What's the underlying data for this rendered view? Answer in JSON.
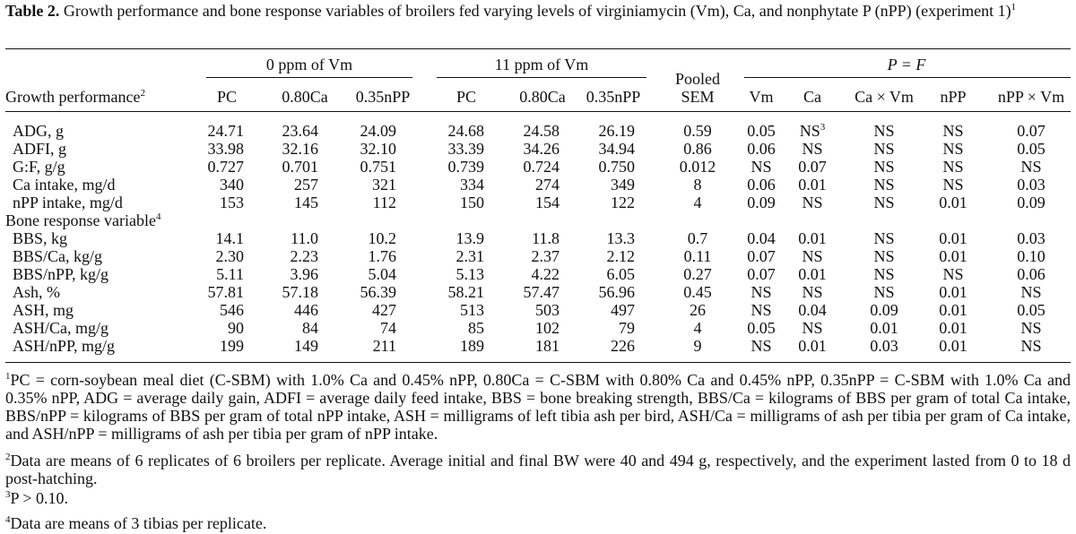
{
  "caption": {
    "label": "Table 2.",
    "text": " Growth performance and bone response variables of broilers fed varying levels of virginiamycin (Vm), Ca, and nonphytate P (nPP) (experiment 1)",
    "sup": "1"
  },
  "header": {
    "group_0ppm": "0 ppm of Vm",
    "group_11ppm": "11 ppm of Vm",
    "pooled_line1": "Pooled",
    "pooled_line2": "SEM",
    "group_pf": "P = F",
    "row_label": "Growth performance",
    "row_label_sup": "2",
    "cols": [
      "PC",
      "0.80Ca",
      "0.35nPP",
      "PC",
      "0.80Ca",
      "0.35nPP",
      "SEM",
      "Vm",
      "Ca",
      "Ca × Vm",
      "nPP",
      "nPP × Vm"
    ]
  },
  "rows": [
    {
      "label": "ADG, g",
      "cells": [
        "24.71",
        "23.64",
        "24.09",
        "24.68",
        "24.58",
        "26.19",
        "0.59",
        "0.05",
        "NS",
        "NS",
        "NS",
        "0.07"
      ],
      "ca_sup": "3"
    },
    {
      "label": "ADFI, g",
      "cells": [
        "33.98",
        "32.16",
        "32.10",
        "33.39",
        "34.26",
        "34.94",
        "0.86",
        "0.06",
        "NS",
        "NS",
        "NS",
        "0.05"
      ]
    },
    {
      "label": "G:F, g/g",
      "cells": [
        "0.727",
        "0.701",
        "0.751",
        "0.739",
        "0.724",
        "0.750",
        "0.012",
        "NS",
        "0.07",
        "NS",
        "NS",
        "NS"
      ]
    },
    {
      "label": "Ca intake, mg/d",
      "cells": [
        "340",
        "257",
        "321",
        "334",
        "274",
        "349",
        "8",
        "0.06",
        "0.01",
        "NS",
        "NS",
        "0.03"
      ]
    },
    {
      "label": "nPP intake, mg/d",
      "cells": [
        "153",
        "145",
        "112",
        "150",
        "154",
        "122",
        "4",
        "0.09",
        "NS",
        "NS",
        "0.01",
        "0.09"
      ]
    },
    {
      "section": "Bone response variable",
      "sup": "4"
    },
    {
      "label": "BBS, kg",
      "cells": [
        "14.1",
        "11.0",
        "10.2",
        "13.9",
        "11.8",
        "13.3",
        "0.7",
        "0.04",
        "0.01",
        "NS",
        "0.01",
        "0.03"
      ]
    },
    {
      "label": "BBS/Ca, kg/g",
      "cells": [
        "2.30",
        "2.23",
        "1.76",
        "2.31",
        "2.37",
        "2.12",
        "0.11",
        "0.07",
        "NS",
        "NS",
        "0.01",
        "0.10"
      ]
    },
    {
      "label": "BBS/nPP, kg/g",
      "cells": [
        "5.11",
        "3.96",
        "5.04",
        "5.13",
        "4.22",
        "6.05",
        "0.27",
        "0.07",
        "0.01",
        "NS",
        "NS",
        "0.06"
      ]
    },
    {
      "label": "Ash, %",
      "cells": [
        "57.81",
        "57.18",
        "56.39",
        "58.21",
        "57.47",
        "56.96",
        "0.45",
        "NS",
        "NS",
        "NS",
        "0.01",
        "NS"
      ]
    },
    {
      "label": "ASH, mg",
      "cells": [
        "546",
        "446",
        "427",
        "513",
        "503",
        "497",
        "26",
        "NS",
        "0.04",
        "0.09",
        "0.01",
        "0.05"
      ]
    },
    {
      "label": "ASH/Ca, mg/g",
      "cells": [
        "90",
        "84",
        "74",
        "85",
        "102",
        "79",
        "4",
        "0.05",
        "NS",
        "0.01",
        "0.01",
        "NS"
      ]
    },
    {
      "label": "ASH/nPP, mg/g",
      "cells": [
        "199",
        "149",
        "211",
        "189",
        "181",
        "226",
        "9",
        "NS",
        "0.01",
        "0.03",
        "0.01",
        "NS"
      ]
    }
  ],
  "footnotes": [
    {
      "sup": "1",
      "text": "PC = corn-soybean meal diet (C-SBM) with 1.0% Ca and 0.45% nPP, 0.80Ca = C-SBM with 0.80% Ca and 0.45% nPP, 0.35nPP = C-SBM with 1.0% Ca and 0.35% nPP, ADG = average daily gain, ADFI = average daily feed intake, BBS = bone breaking strength, BBS/Ca = kilograms of BBS per gram of total Ca intake, BBS/nPP = kilograms of BBS per gram of total nPP intake, ASH = milligrams of left tibia ash per bird, ASH/Ca = milligrams of ash per tibia per gram of Ca intake, and ASH/nPP = milligrams of ash per tibia per gram of nPP intake."
    },
    {
      "sup": "2",
      "text": "Data are means of 6 replicates of 6 broilers per replicate. Average initial and final BW were 40 and 494 g, respectively, and the experiment lasted from 0 to 18 d post-hatching."
    },
    {
      "sup": "3",
      "text": "P > 0.10."
    },
    {
      "sup": "4",
      "text": "Data are means of 3 tibias per replicate."
    }
  ]
}
